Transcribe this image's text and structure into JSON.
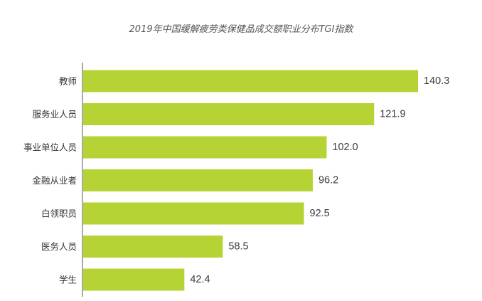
{
  "chart_data": {
    "type": "bar",
    "orientation": "horizontal",
    "title": "2019年中国缓解疲劳类保健品成交额职业分布TGI指数",
    "categories": [
      "教师",
      "服务业人员",
      "事业单位人员",
      "金融从业者",
      "白领职员",
      "医务人员",
      "学生"
    ],
    "values": [
      140.3,
      121.9,
      102.0,
      96.2,
      92.5,
      58.5,
      42.4
    ],
    "value_labels": [
      "140.3",
      "121.9",
      "102.0",
      "96.2",
      "92.5",
      "58.5",
      "42.4"
    ],
    "xlim": [
      0,
      140.3
    ],
    "grid": false,
    "legend": "none",
    "bar_color": "#b5d334",
    "axis_color": "#555555"
  }
}
